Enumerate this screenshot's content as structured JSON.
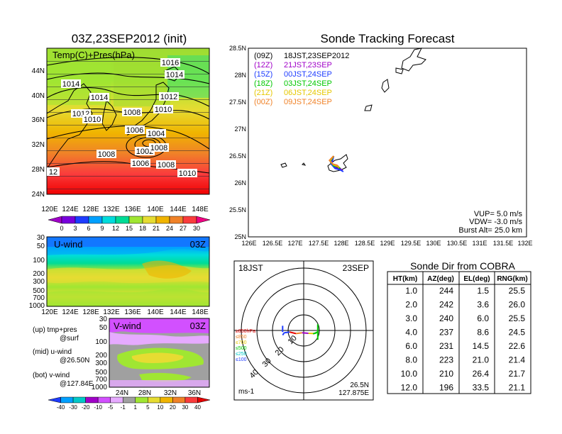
{
  "left_title": "03Z,23SEP2012 (init)",
  "right_title": "Sonde Tracking Forecast",
  "map_panel": {
    "label": "Temp(C)+Pres(hPa)",
    "lat_labels": [
      "44N",
      "40N",
      "36N",
      "32N",
      "28N",
      "24N"
    ],
    "lon_labels": [
      "120E",
      "124E",
      "128E",
      "132E",
      "136E",
      "140E",
      "144E",
      "148E"
    ],
    "isobar_labels": [
      "1016",
      "1014",
      "1014",
      "1014",
      "1012",
      "1012",
      "1010",
      "1010",
      "1008",
      "1008",
      "1008",
      "1006",
      "1006",
      "1004",
      "1002",
      "1010",
      "12",
      "1008"
    ],
    "colorbar_labels": [
      "0",
      "3",
      "6",
      "9",
      "12",
      "15",
      "18",
      "21",
      "24",
      "27",
      "30"
    ],
    "colorbar_colors": [
      "#a000c8",
      "#7800dc",
      "#1e3cff",
      "#00a0ff",
      "#00dcdc",
      "#00dc96",
      "#a0e632",
      "#e6dc32",
      "#f0b400",
      "#f08228",
      "#fa3c3c",
      "#f00082"
    ]
  },
  "u_panel": {
    "label": "U-wind",
    "time": "03Z",
    "y_labels": [
      "30",
      "50",
      "100",
      "200",
      "300",
      "500",
      "700",
      "1000"
    ],
    "x_labels": [
      "120E",
      "124E",
      "128E",
      "132E",
      "136E",
      "140E",
      "144E",
      "148E"
    ]
  },
  "v_panel": {
    "label": "V-wind",
    "time": "03Z",
    "y_labels": [
      "30",
      "50",
      "100",
      "200",
      "300",
      "500",
      "700",
      "1000"
    ],
    "x_labels": [
      "24N",
      "28N",
      "32N",
      "36N"
    ],
    "colorbar_labels": [
      "-40",
      "-30",
      "-20",
      "-10",
      "-5",
      "-1",
      "1",
      "5",
      "10",
      "20",
      "30",
      "40"
    ],
    "colorbar_colors": [
      "#1e3cff",
      "#00a0ff",
      "#00c8c8",
      "#a000c8",
      "#d250ff",
      "#e6aaff",
      "#a0a0a0",
      "#a0e632",
      "#e6dc32",
      "#f0b400",
      "#f08228",
      "#fa3c3c",
      "#e60000"
    ]
  },
  "legend_notes": [
    "(up) tmp+pres",
    "@surf",
    "(mid) u-wind",
    "@26.50N",
    "(bot) v-wind",
    "@127.84E"
  ],
  "track_map": {
    "lat_labels": [
      "28.5N",
      "28N",
      "27.5N",
      "27N",
      "26.5N",
      "26N",
      "25.5N",
      "25N"
    ],
    "lon_labels": [
      "126E",
      "126.5E",
      "127E",
      "127.5E",
      "128E",
      "128.5E",
      "129E",
      "129.5E",
      "130E",
      "130.5E",
      "131E",
      "131.5E",
      "132E"
    ],
    "launches": [
      {
        "code": "(09Z)",
        "text": "18JST,23SEP2012",
        "color": "#000000"
      },
      {
        "code": "(12Z)",
        "text": "21JST,23SEP",
        "color": "#a000c8"
      },
      {
        "code": "(15Z)",
        "text": "00JST,24SEP",
        "color": "#1e3cff"
      },
      {
        "code": "(18Z)",
        "text": "03JST,24SEP",
        "color": "#00c800"
      },
      {
        "code": "(21Z)",
        "text": "06JST,24SEP",
        "color": "#e6c800"
      },
      {
        "code": "(00Z)",
        "text": "09JST,24SEP",
        "color": "#f08228"
      }
    ],
    "params": [
      "VUP=  5.0 m/s",
      "VDW= -3.0 m/s",
      "Burst Alt= 25.0 km"
    ]
  },
  "polar": {
    "time_label": "18JST",
    "date_label": "23SEP",
    "range_labels": [
      "10",
      "20",
      "30",
      "40"
    ],
    "height_legend": [
      {
        "text": "≥850hPa",
        "color": "#e60000"
      },
      {
        "text": "≤850",
        "color": "#f08228"
      },
      {
        "text": "≤700",
        "color": "#e6c800"
      },
      {
        "text": "≤500",
        "color": "#00c800"
      },
      {
        "text": "≤250",
        "color": "#00c8c8"
      },
      {
        "text": "≤100",
        "color": "#1e3cff"
      }
    ],
    "unit": "ms-1",
    "lat": "26.5N",
    "lon": "127.875E"
  },
  "dir_table": {
    "title": "Sonde Dir from COBRA",
    "headers": [
      "HT(km)",
      "AZ(deg)",
      "EL(deg)",
      "RNG(km)"
    ],
    "rows": [
      [
        "1.0",
        "244",
        "1.5",
        "25.5"
      ],
      [
        "2.0",
        "242",
        "3.6",
        "26.0"
      ],
      [
        "3.0",
        "240",
        "6.0",
        "25.5"
      ],
      [
        "4.0",
        "237",
        "8.6",
        "24.5"
      ],
      [
        "6.0",
        "231",
        "14.5",
        "22.6"
      ],
      [
        "8.0",
        "223",
        "21.0",
        "21.4"
      ],
      [
        "10.0",
        "210",
        "26.4",
        "21.7"
      ],
      [
        "12.0",
        "196",
        "33.5",
        "21.1"
      ]
    ]
  },
  "chart_data": [
    {
      "type": "heatmap",
      "title": "03Z,23SEP2012 (init)",
      "subtitle": "Temp(C)+Pres(hPa)",
      "x_ticks": [
        "120E",
        "124E",
        "128E",
        "132E",
        "136E",
        "140E",
        "144E",
        "148E"
      ],
      "y_ticks": [
        "24N",
        "28N",
        "32N",
        "36N",
        "40N",
        "44N"
      ],
      "colorbar": [
        0,
        3,
        6,
        9,
        12,
        15,
        18,
        21,
        24,
        27,
        30
      ],
      "isobars_hPa": [
        1016,
        1014,
        1014,
        1014,
        1012,
        1012,
        1010,
        1010,
        1008,
        1008,
        1008,
        1006,
        1006,
        1004,
        1002,
        1010,
        12,
        1008
      ]
    },
    {
      "type": "heatmap",
      "title": "U-wind",
      "x_ticks": [
        "120E",
        "124E",
        "128E",
        "132E",
        "136E",
        "140E",
        "144E",
        "148E"
      ],
      "y_ticks_hPa": [
        30,
        50,
        100,
        200,
        300,
        500,
        700,
        1000
      ]
    },
    {
      "type": "heatmap",
      "title": "V-wind",
      "x_ticks": [
        "24N",
        "28N",
        "32N",
        "36N"
      ],
      "y_ticks_hPa": [
        30,
        50,
        100,
        200,
        300,
        500,
        700,
        1000
      ],
      "colorbar": [
        -40,
        -30,
        -20,
        -10,
        -5,
        -1,
        1,
        5,
        10,
        20,
        30,
        40
      ]
    },
    {
      "type": "line",
      "title": "Sonde Tracking Forecast",
      "x_ticks": [
        "126E",
        "126.5E",
        "127E",
        "127.5E",
        "128E",
        "128.5E",
        "129E",
        "129.5E",
        "130E",
        "130.5E",
        "131E",
        "131.5E",
        "132E"
      ],
      "y_ticks": [
        "25N",
        "25.5N",
        "26N",
        "26.5N",
        "27N",
        "27.5N",
        "28N",
        "28.5N"
      ],
      "xlim": [
        126,
        132
      ],
      "ylim": [
        25,
        28.5
      ],
      "series": [
        {
          "name": "(09Z) 18JST,23SEP2012",
          "color": "#000000",
          "x": [
            127.84,
            127.78,
            127.85,
            127.96,
            128.0
          ],
          "y": [
            26.5,
            26.38,
            26.3,
            26.28,
            26.25
          ]
        },
        {
          "name": "(12Z) 21JST,23SEP",
          "color": "#a000c8",
          "x": [
            127.84,
            127.8,
            127.88,
            127.98,
            128.03
          ],
          "y": [
            26.5,
            26.36,
            26.28,
            26.26,
            26.23
          ]
        },
        {
          "name": "(15Z) 00JST,24SEP",
          "color": "#1e3cff",
          "x": [
            127.84,
            127.79,
            127.87,
            127.99,
            128.05
          ],
          "y": [
            26.5,
            26.35,
            26.27,
            26.24,
            26.21
          ]
        },
        {
          "name": "(18Z) 03JST,24SEP",
          "color": "#00c800",
          "x": [
            127.84,
            127.77,
            127.84,
            127.93,
            127.98
          ],
          "y": [
            26.5,
            26.4,
            26.32,
            26.3,
            26.27
          ]
        },
        {
          "name": "(21Z) 06JST,24SEP",
          "color": "#e6c800",
          "x": [
            127.84,
            127.76,
            127.83,
            127.92,
            127.96
          ],
          "y": [
            26.5,
            26.41,
            26.34,
            26.31,
            26.29
          ]
        },
        {
          "name": "(00Z) 09JST,24SEP",
          "color": "#f08228",
          "x": [
            127.84,
            127.75,
            127.82,
            127.91,
            127.95
          ],
          "y": [
            26.5,
            26.42,
            26.35,
            26.33,
            26.3
          ]
        }
      ]
    },
    {
      "type": "line",
      "title": "18JST 23SEP",
      "rlim": [
        0,
        40
      ],
      "range_ticks": [
        10,
        20,
        30,
        40
      ],
      "hodograph_ms": {
        "u": [
          -13.5,
          -12.5,
          -9,
          -5,
          -1,
          3,
          7,
          9,
          6
        ],
        "v": [
          -3,
          -1.5,
          -1,
          -2,
          -1.5,
          -1.8,
          -2,
          -1,
          -2.2
        ]
      }
    },
    {
      "type": "table",
      "title": "Sonde Dir from COBRA",
      "columns": [
        "HT(km)",
        "AZ(deg)",
        "EL(deg)",
        "RNG(km)"
      ],
      "rows": [
        [
          1.0,
          244,
          1.5,
          25.5
        ],
        [
          2.0,
          242,
          3.6,
          26.0
        ],
        [
          3.0,
          240,
          6.0,
          25.5
        ],
        [
          4.0,
          237,
          8.6,
          24.5
        ],
        [
          6.0,
          231,
          14.5,
          22.6
        ],
        [
          8.0,
          223,
          21.0,
          21.4
        ],
        [
          10.0,
          210,
          26.4,
          21.7
        ],
        [
          12.0,
          196,
          33.5,
          21.1
        ]
      ]
    }
  ]
}
